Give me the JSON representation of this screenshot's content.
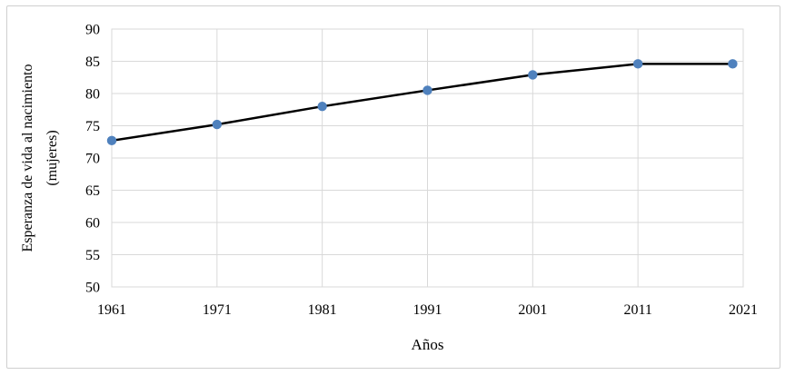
{
  "figure": {
    "background": "#ffffff",
    "border_color": "#cfcfcf"
  },
  "chart_data": {
    "type": "line",
    "xlabel": "Años",
    "ylabel": "Esperanza de vida al nacimiento (mujeres)",
    "ylabel_line1": "Esperanza de vida al nacimiento",
    "ylabel_line2": "(mujeres)",
    "x": [
      1961,
      1971,
      1981,
      1991,
      2001,
      2011,
      2020
    ],
    "values": [
      72.7,
      75.2,
      78.0,
      80.5,
      82.9,
      84.6,
      84.6
    ],
    "x_ticks": [
      1961,
      1971,
      1981,
      1991,
      2001,
      2011,
      2021
    ],
    "y_ticks": [
      50,
      55,
      60,
      65,
      70,
      75,
      80,
      85,
      90
    ],
    "xlim": [
      1961,
      2021
    ],
    "ylim": [
      50,
      90
    ],
    "grid": true,
    "legend": "none",
    "line_color": "#000000",
    "marker_color": "#4f81bd",
    "gridline_color": "#d9d9d9",
    "tick_color": "#000000"
  }
}
